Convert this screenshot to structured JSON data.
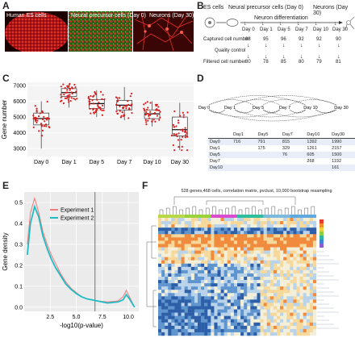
{
  "panels": {
    "A": {
      "letter": "A",
      "labels": [
        "Human ES cells",
        "Neural precursor cells (Day 0)",
        "Neurons (Day 30)"
      ],
      "colors": [
        "#c81b1b",
        "#2c7a1c",
        "#b51a1e"
      ]
    },
    "B": {
      "letter": "B",
      "top_labels": [
        "ES cells",
        "Neural precursor cells (Day 0)",
        "Neurons (Day 30)"
      ],
      "diff_label": "Neuron differentiation",
      "days": [
        "Day 0",
        "Day 1",
        "Day 5",
        "Day 7",
        "Day 10",
        "Day 30"
      ],
      "rows": [
        {
          "label": "Captured cell number",
          "values": [
            "88",
            "95",
            "96",
            "92",
            "92",
            "90"
          ]
        },
        {
          "label": "Quality control",
          "values": [
            "",
            "",
            "",
            "",
            "",
            ""
          ]
        },
        {
          "label": "Filtered cell number",
          "values": [
            "80",
            "78",
            "85",
            "80",
            "79",
            "81"
          ]
        }
      ]
    },
    "C": {
      "letter": "C",
      "chart_data": {
        "type": "box",
        "ylabel": "Gene number",
        "categories": [
          "Day 0",
          "Day 1",
          "Day 5",
          "Day 7",
          "Day 10",
          "Day 30"
        ],
        "ylim": [
          2500,
          7200
        ],
        "yticks": [
          3000,
          4000,
          5000,
          6000,
          7000
        ],
        "boxes": [
          {
            "whisker_low": 3000,
            "q1": 4500,
            "median": 4900,
            "q3": 5250,
            "whisker_high": 6000
          },
          {
            "whisker_low": 5600,
            "q1": 6300,
            "median": 6550,
            "q3": 6800,
            "whisker_high": 7100
          },
          {
            "whisker_low": 5000,
            "q1": 5550,
            "median": 5850,
            "q3": 6100,
            "whisker_high": 6700
          },
          {
            "whisker_low": 4800,
            "q1": 5450,
            "median": 5750,
            "q3": 6050,
            "whisker_high": 6900
          },
          {
            "whisker_low": 4400,
            "q1": 4900,
            "median": 5200,
            "q3": 5450,
            "whisker_high": 6000
          },
          {
            "whisker_low": 2900,
            "q1": 3800,
            "median": 4200,
            "q3": 5000,
            "whisker_high": 5900
          }
        ],
        "point_color": "#d81e1e"
      }
    },
    "D": {
      "letter": "D",
      "graph_nodes": [
        "Day 0",
        "Day 1",
        "Day 5",
        "Day 7",
        "Day 10",
        "Day 30"
      ],
      "table": {
        "cols": [
          "",
          "Day1",
          "Day5",
          "Day7",
          "Day10",
          "Day30"
        ],
        "rows": [
          [
            "Day0",
            "716",
            "791",
            "815",
            "1392",
            "1990"
          ],
          [
            "Day1",
            "",
            "175",
            "329",
            "1261",
            "2157"
          ],
          [
            "Day5",
            "",
            "",
            "76",
            "605",
            "1500"
          ],
          [
            "Day7",
            "",
            "",
            "",
            "268",
            "1192"
          ],
          [
            "Day10",
            "",
            "",
            "",
            "",
            "161"
          ]
        ]
      }
    },
    "E": {
      "letter": "E",
      "chart_data": {
        "type": "line",
        "xlabel": "-log10(p-value)",
        "ylabel": "Gene density",
        "xlim": [
          0,
          11
        ],
        "ylim": [
          -0.02,
          0.55
        ],
        "xticks": [
          2.5,
          5.0,
          7.5,
          10.0
        ],
        "xtick_labels": [
          "2.5",
          "5.0",
          "7.5",
          "10.0"
        ],
        "yticks": [
          0.0,
          0.1,
          0.2,
          0.3,
          0.4,
          0.5
        ],
        "ytick_labels": [
          "0.0",
          "0.1",
          "0.2",
          "0.3",
          "0.4",
          "0.5"
        ],
        "vline": 6.8,
        "legend_position": "top-right",
        "series": [
          {
            "name": "Experiment 1",
            "color": "#f08080",
            "x": [
              0.3,
              0.6,
              1.0,
              1.4,
              1.8,
              2.2,
              2.6,
              3.0,
              3.5,
              4.0,
              4.5,
              5.0,
              5.5,
              6.0,
              7.0,
              8.0,
              9.0,
              9.5,
              9.8,
              10.1,
              10.6
            ],
            "y": [
              0.3,
              0.45,
              0.52,
              0.45,
              0.36,
              0.3,
              0.25,
              0.21,
              0.16,
              0.12,
              0.09,
              0.07,
              0.05,
              0.04,
              0.03,
              0.025,
              0.03,
              0.05,
              0.08,
              0.05,
              0.0
            ]
          },
          {
            "name": "Experiment 2",
            "color": "#1fbcc4",
            "x": [
              0.3,
              0.6,
              1.0,
              1.4,
              1.8,
              2.2,
              2.6,
              3.0,
              3.5,
              4.0,
              4.5,
              5.0,
              5.5,
              6.0,
              7.0,
              8.0,
              9.0,
              9.5,
              9.8,
              10.1,
              10.6
            ],
            "y": [
              0.25,
              0.4,
              0.48,
              0.43,
              0.34,
              0.28,
              0.23,
              0.19,
              0.15,
              0.11,
              0.085,
              0.065,
              0.05,
              0.04,
              0.03,
              0.02,
              0.025,
              0.035,
              0.06,
              0.04,
              0.0
            ]
          }
        ]
      }
    },
    "F": {
      "letter": "F",
      "title": "528 genes,468 cells, correlation matrix, pvclust, 10,000 bootstrap resampling",
      "cluster_colors": [
        "#b8d945",
        "#9ad23a",
        "#d94cd0",
        "#2dbf9c",
        "#7db9de",
        "#5fa8e0"
      ],
      "legend_colors": [
        "#e73b2f",
        "#ef8f2f",
        "#f4d03f",
        "#8bd044",
        "#2fb5a0",
        "#3d83d6",
        "#8b5fd0"
      ]
    }
  }
}
